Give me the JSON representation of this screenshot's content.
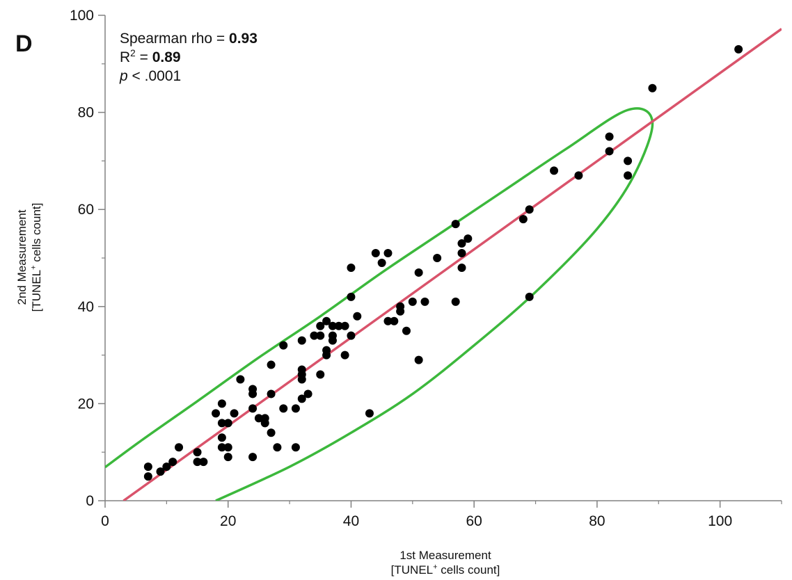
{
  "panel_label": "D",
  "stats": {
    "rho_label": "Spearman rho = ",
    "rho_value": "0.93",
    "r2_label_base": "R",
    "r2_label_sup": "2",
    "r2_label_rest": " = ",
    "r2_value": "0.89",
    "p_label": "p",
    "p_value": " < .0001"
  },
  "axes": {
    "x_line1": "1st Measurement",
    "x_line2_pre": "[TUNEL",
    "x_line2_sup": "+",
    "x_line2_post": " cells count]",
    "y_line1": "2nd Measurement",
    "y_line2_pre": "[TUNEL",
    "y_line2_sup": "+",
    "y_line2_post": " cells count]"
  },
  "colors": {
    "points": "#000000",
    "fit_line": "#d9536b",
    "ellipse": "#3cb83c",
    "axis": "#808080"
  },
  "chart_data": {
    "type": "scatter",
    "xlim": [
      0,
      110
    ],
    "ylim": [
      0,
      100
    ],
    "x_ticks": [
      0,
      20,
      40,
      60,
      80,
      100
    ],
    "y_ticks": [
      0,
      20,
      40,
      60,
      80,
      100
    ],
    "x_tick_labels": [
      "0",
      "20",
      "40",
      "60",
      "80",
      "100"
    ],
    "y_tick_labels": [
      "0",
      "20",
      "40",
      "60",
      "80",
      "100"
    ],
    "grid": false,
    "fit_line": {
      "x": [
        3,
        110
      ],
      "y": [
        0,
        97.2
      ]
    },
    "ellipse": [
      [
        0,
        6.9
      ],
      [
        6,
        12.5
      ],
      [
        15,
        20.5
      ],
      [
        25,
        29.5
      ],
      [
        35,
        38
      ],
      [
        45,
        47
      ],
      [
        55,
        55.5
      ],
      [
        65,
        64
      ],
      [
        75,
        72.5
      ],
      [
        85,
        80.5
      ],
      [
        89,
        78
      ],
      [
        86,
        67
      ],
      [
        80,
        56
      ],
      [
        70,
        43
      ],
      [
        60,
        32
      ],
      [
        50,
        22
      ],
      [
        40,
        14
      ],
      [
        30,
        7
      ],
      [
        18,
        0
      ]
    ],
    "points": [
      [
        7,
        7
      ],
      [
        7,
        5
      ],
      [
        9,
        6
      ],
      [
        10,
        7
      ],
      [
        11,
        8
      ],
      [
        12,
        11
      ],
      [
        15,
        10
      ],
      [
        15,
        8
      ],
      [
        16,
        8
      ],
      [
        18,
        18
      ],
      [
        19,
        20
      ],
      [
        19,
        16
      ],
      [
        19,
        13
      ],
      [
        19,
        11
      ],
      [
        20,
        16
      ],
      [
        20,
        11
      ],
      [
        20,
        9
      ],
      [
        21,
        18
      ],
      [
        22,
        25
      ],
      [
        24,
        23
      ],
      [
        24,
        22
      ],
      [
        24,
        19
      ],
      [
        24,
        9
      ],
      [
        25,
        17
      ],
      [
        26,
        17
      ],
      [
        26,
        16
      ],
      [
        27,
        28
      ],
      [
        27,
        22
      ],
      [
        27,
        14
      ],
      [
        28,
        11
      ],
      [
        29,
        32
      ],
      [
        29,
        19
      ],
      [
        31,
        19
      ],
      [
        31,
        11
      ],
      [
        32,
        33
      ],
      [
        32,
        27
      ],
      [
        32,
        26
      ],
      [
        32,
        25
      ],
      [
        32,
        21
      ],
      [
        33,
        22
      ],
      [
        34,
        34
      ],
      [
        35,
        36
      ],
      [
        35,
        34
      ],
      [
        35,
        26
      ],
      [
        36,
        37
      ],
      [
        36,
        31
      ],
      [
        36,
        30
      ],
      [
        37,
        36
      ],
      [
        37,
        34
      ],
      [
        37,
        33
      ],
      [
        38,
        36
      ],
      [
        39,
        36
      ],
      [
        39,
        30
      ],
      [
        40,
        48
      ],
      [
        40,
        42
      ],
      [
        40,
        34
      ],
      [
        41,
        38
      ],
      [
        43,
        18
      ],
      [
        44,
        51
      ],
      [
        45,
        49
      ],
      [
        46,
        51
      ],
      [
        46,
        37
      ],
      [
        47,
        37
      ],
      [
        48,
        40
      ],
      [
        48,
        39
      ],
      [
        49,
        35
      ],
      [
        50,
        41
      ],
      [
        51,
        47
      ],
      [
        51,
        29
      ],
      [
        52,
        41
      ],
      [
        54,
        50
      ],
      [
        57,
        57
      ],
      [
        57,
        41
      ],
      [
        58,
        53
      ],
      [
        58,
        51
      ],
      [
        58,
        48
      ],
      [
        59,
        54
      ],
      [
        68,
        58
      ],
      [
        69,
        60
      ],
      [
        69,
        42
      ],
      [
        73,
        68
      ],
      [
        77,
        67
      ],
      [
        82,
        75
      ],
      [
        82,
        72
      ],
      [
        85,
        70
      ],
      [
        85,
        67
      ],
      [
        89,
        85
      ],
      [
        103,
        93
      ]
    ]
  }
}
